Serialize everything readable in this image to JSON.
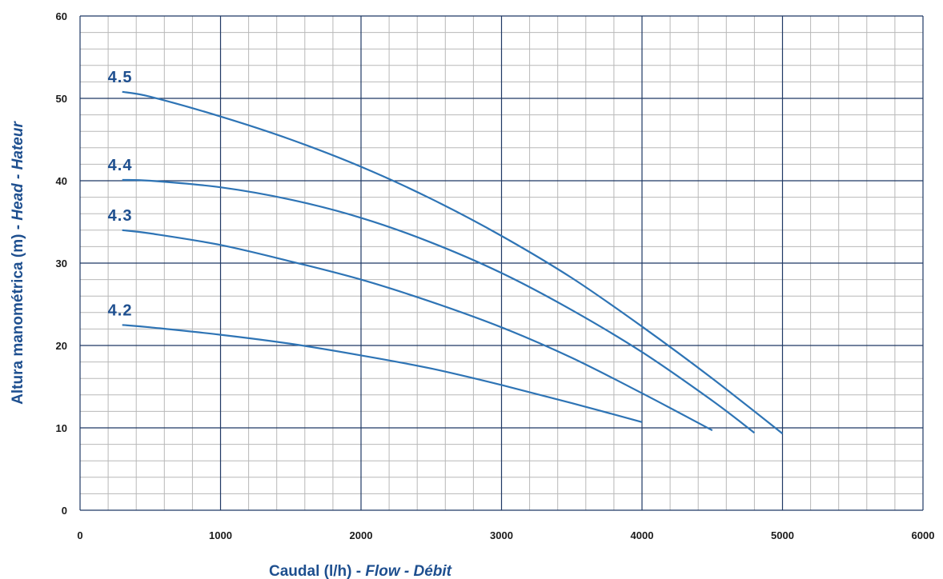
{
  "chart_data": {
    "type": "line",
    "xlabel": {
      "main": "Caudal (l/h) - ",
      "alt": "Flow - Débit"
    },
    "ylabel": {
      "main": "Altura manométrica (m) - ",
      "alt": "Head - Hateur"
    },
    "xlim": [
      0,
      6000
    ],
    "ylim": [
      0,
      60
    ],
    "xticks": [
      "0",
      "1000",
      "2000",
      "3000",
      "4000",
      "5000",
      "6000"
    ],
    "yticks": [
      "0",
      "10",
      "20",
      "30",
      "40",
      "50",
      "60"
    ],
    "grid": true,
    "line_color": "#2e74b5",
    "label_color": "#1e4f8f",
    "series": [
      {
        "name": "4.5",
        "x": [
          300,
          500,
          1000,
          1500,
          2000,
          2500,
          3000,
          3500,
          4000,
          4500,
          5000
        ],
        "y": [
          50.8,
          50.2,
          47.8,
          45.0,
          41.7,
          37.8,
          33.3,
          28.2,
          22.3,
          16.0,
          9.3
        ]
      },
      {
        "name": "4.4",
        "x": [
          300,
          500,
          1000,
          1500,
          2000,
          2500,
          3000,
          3500,
          4000,
          4500,
          4800
        ],
        "y": [
          40.1,
          40.0,
          39.2,
          37.7,
          35.5,
          32.5,
          28.8,
          24.3,
          19.2,
          13.3,
          9.4
        ]
      },
      {
        "name": "4.3",
        "x": [
          300,
          500,
          1000,
          1500,
          2000,
          2500,
          3000,
          3500,
          4000,
          4500
        ],
        "y": [
          34.0,
          33.6,
          32.2,
          30.2,
          28.0,
          25.3,
          22.2,
          18.5,
          14.2,
          9.7
        ]
      },
      {
        "name": "4.2",
        "x": [
          300,
          500,
          1000,
          1500,
          2000,
          2500,
          3000,
          3500,
          4000
        ],
        "y": [
          22.5,
          22.2,
          21.3,
          20.2,
          18.8,
          17.2,
          15.2,
          13.0,
          10.7
        ]
      }
    ]
  }
}
